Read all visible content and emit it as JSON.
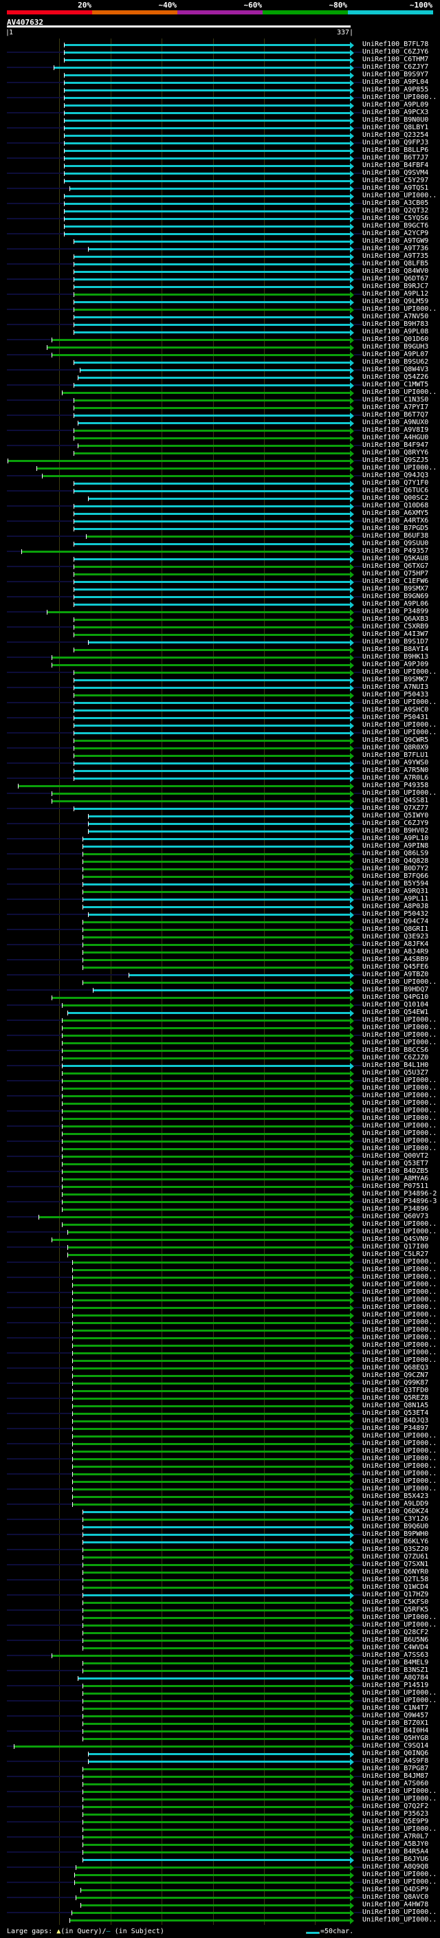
{
  "scale": {
    "labels": [
      "20%",
      "~40%",
      "~60%",
      "~80%",
      "~100%"
    ],
    "colors": [
      "#f00018",
      "#e06000",
      "#a020a0",
      "#00a000",
      "#10c8d0"
    ]
  },
  "query": {
    "title": "AV407632",
    "start": "1",
    "end": "337",
    "length": 337
  },
  "colors": {
    "c": "#10c8d0",
    "g": "#0aa00a"
  },
  "hits": [
    [
      "UniRef100_B7FL78",
      "c",
      57
    ],
    [
      "UniRef100_C6ZJY6",
      "c",
      57
    ],
    [
      "UniRef100_C6THM7",
      "c",
      57
    ],
    [
      "UniRef100_C6ZJY7",
      "c",
      47
    ],
    [
      "UniRef100_B9S9Y7",
      "c",
      57
    ],
    [
      "UniRef100_A9PL04",
      "c",
      57
    ],
    [
      "UniRef100_A9P855",
      "c",
      57
    ],
    [
      "UniRef100_UPI000..",
      "c",
      57
    ],
    [
      "UniRef100_A9PL09",
      "c",
      57
    ],
    [
      "UniRef100_A9PCX3",
      "c",
      57
    ],
    [
      "UniRef100_B9N0U0",
      "c",
      57
    ],
    [
      "UniRef100_Q8LBY1",
      "c",
      57
    ],
    [
      "UniRef100_Q23254",
      "c",
      57
    ],
    [
      "UniRef100_Q9FPJ3",
      "c",
      57
    ],
    [
      "UniRef100_B8LLP6",
      "c",
      57
    ],
    [
      "UniRef100_B6T7J7",
      "c",
      57
    ],
    [
      "UniRef100_B4FBF4",
      "c",
      57
    ],
    [
      "UniRef100_Q9SVM4",
      "c",
      57
    ],
    [
      "UniRef100_C5Y297",
      "c",
      57
    ],
    [
      "UniRef100_A9TQS1",
      "c",
      62
    ],
    [
      "UniRef100_UPI000..",
      "c",
      57
    ],
    [
      "UniRef100_A3CB05",
      "c",
      57
    ],
    [
      "UniRef100_Q2QT32",
      "c",
      57
    ],
    [
      "UniRef100_C5YQS6",
      "c",
      57
    ],
    [
      "UniRef100_B9GCT6",
      "c",
      57
    ],
    [
      "UniRef100_A2YCP9",
      "c",
      57
    ],
    [
      "UniRef100_A9TGW9",
      "c",
      66
    ],
    [
      "UniRef100_A9T736",
      "c",
      80
    ],
    [
      "UniRef100_A9T735",
      "c",
      66
    ],
    [
      "UniRef100_Q8LFB5",
      "c",
      66
    ],
    [
      "UniRef100_Q84WV0",
      "c",
      66
    ],
    [
      "UniRef100_Q6DT67",
      "c",
      66
    ],
    [
      "UniRef100_B9RJC7",
      "c",
      66
    ],
    [
      "UniRef100_A9PL12",
      "g",
      66
    ],
    [
      "UniRef100_Q9LM59",
      "c",
      66
    ],
    [
      "UniRef100_UPI000..",
      "g",
      66
    ],
    [
      "UniRef100_A7NV50",
      "c",
      66
    ],
    [
      "UniRef100_B9H783",
      "c",
      66
    ],
    [
      "UniRef100_A9PL08",
      "c",
      66
    ],
    [
      "UniRef100_Q01D60",
      "g",
      45
    ],
    [
      "UniRef100_B9GUH3",
      "g",
      40
    ],
    [
      "UniRef100_A9PL07",
      "g",
      45
    ],
    [
      "UniRef100_B9SU62",
      "c",
      66
    ],
    [
      "UniRef100_Q8W4V3",
      "c",
      72
    ],
    [
      "UniRef100_Q54Z26",
      "c",
      70
    ],
    [
      "UniRef100_C1MWT5",
      "c",
      66
    ],
    [
      "UniRef100_UPI000..",
      "g",
      55
    ],
    [
      "UniRef100_C1N3S0",
      "g",
      66
    ],
    [
      "UniRef100_A7PYI7",
      "g",
      66
    ],
    [
      "UniRef100_B6T7Q7",
      "c",
      66
    ],
    [
      "UniRef100_A9NUX0",
      "c",
      70
    ],
    [
      "UniRef100_A9V8I9",
      "g",
      66
    ],
    [
      "UniRef100_A4HGU0",
      "g",
      66
    ],
    [
      "UniRef100_B4F947",
      "g",
      70
    ],
    [
      "UniRef100_Q8RYY6",
      "g",
      66
    ],
    [
      "UniRef100_Q9SZJ5",
      "g",
      2
    ],
    [
      "UniRef100_UPI000..",
      "g",
      30
    ],
    [
      "UniRef100_Q94JQ3",
      "g",
      35
    ],
    [
      "UniRef100_Q7Y1F0",
      "c",
      66
    ],
    [
      "UniRef100_Q6TUC6",
      "c",
      66
    ],
    [
      "UniRef100_Q00SC2",
      "c",
      80
    ],
    [
      "UniRef100_Q10D68",
      "c",
      66
    ],
    [
      "UniRef100_A6XMY5",
      "c",
      66
    ],
    [
      "UniRef100_A4RTX6",
      "c",
      66
    ],
    [
      "UniRef100_B7PGD5",
      "c",
      66
    ],
    [
      "UniRef100_B6UF38",
      "g",
      78
    ],
    [
      "UniRef100_Q9SUU0",
      "c",
      66
    ],
    [
      "UniRef100_P49357",
      "g",
      15
    ],
    [
      "UniRef100_Q5KAU8",
      "c",
      66
    ],
    [
      "UniRef100_Q6TXG7",
      "g",
      66
    ],
    [
      "UniRef100_Q75HP7",
      "g",
      66
    ],
    [
      "UniRef100_C1EFW6",
      "c",
      66
    ],
    [
      "UniRef100_B9SMX7",
      "c",
      66
    ],
    [
      "UniRef100_B9GN69",
      "c",
      66
    ],
    [
      "UniRef100_A9PL06",
      "c",
      66
    ],
    [
      "UniRef100_P34899",
      "g",
      40
    ],
    [
      "UniRef100_Q6AXB3",
      "g",
      66
    ],
    [
      "UniRef100_C5XRB9",
      "g",
      66
    ],
    [
      "UniRef100_A4I3W7",
      "g",
      66
    ],
    [
      "UniRef100_B9S1D7",
      "c",
      80
    ],
    [
      "UniRef100_B8AYI4",
      "g",
      66
    ],
    [
      "UniRef100_B9HK13",
      "g",
      45
    ],
    [
      "UniRef100_A9PJ09",
      "g",
      45
    ],
    [
      "UniRef100_UPI000..",
      "g",
      66
    ],
    [
      "UniRef100_B9SMK7",
      "c",
      66
    ],
    [
      "UniRef100_A7NUI3",
      "c",
      66
    ],
    [
      "UniRef100_P50433",
      "g",
      66
    ],
    [
      "UniRef100_UPI000..",
      "c",
      66
    ],
    [
      "UniRef100_A9SHC0",
      "c",
      66
    ],
    [
      "UniRef100_P50431",
      "c",
      66
    ],
    [
      "UniRef100_UPI000..",
      "c",
      66
    ],
    [
      "UniRef100_UPI000..",
      "c",
      66
    ],
    [
      "UniRef100_Q9CWR5",
      "g",
      66
    ],
    [
      "UniRef100_Q8R0X9",
      "g",
      66
    ],
    [
      "UniRef100_B7FLU1",
      "g",
      66
    ],
    [
      "UniRef100_A9YWS0",
      "c",
      66
    ],
    [
      "UniRef100_A7R5N0",
      "c",
      66
    ],
    [
      "UniRef100_A7R0L6",
      "c",
      66
    ],
    [
      "UniRef100_P49358",
      "g",
      12
    ],
    [
      "UniRef100_UPI000..",
      "g",
      45
    ],
    [
      "UniRef100_Q4SS81",
      "g",
      45
    ],
    [
      "UniRef100_Q7XZ77",
      "c",
      66
    ],
    [
      "UniRef100_Q5IWY0",
      "c",
      80
    ],
    [
      "UniRef100_C6ZJY9",
      "c",
      80
    ],
    [
      "UniRef100_B9HV02",
      "c",
      80
    ],
    [
      "UniRef100_A9PL10",
      "c",
      75
    ],
    [
      "UniRef100_A9PIN8",
      "c",
      75
    ],
    [
      "UniRef100_Q86LS9",
      "g",
      75
    ],
    [
      "UniRef100_Q4Q828",
      "g",
      75
    ],
    [
      "UniRef100_B0D7Y2",
      "g",
      75
    ],
    [
      "UniRef100_B7FQ66",
      "g",
      75
    ],
    [
      "UniRef100_B5Y594",
      "c",
      75
    ],
    [
      "UniRef100_A9RQ31",
      "g",
      75
    ],
    [
      "UniRef100_A9PL11",
      "c",
      75
    ],
    [
      "UniRef100_A8P0J8",
      "c",
      75
    ],
    [
      "UniRef100_P50432",
      "c",
      80
    ],
    [
      "UniRef100_Q94C74",
      "g",
      75
    ],
    [
      "UniRef100_Q8GRI1",
      "g",
      75
    ],
    [
      "UniRef100_Q3E923",
      "g",
      75
    ],
    [
      "UniRef100_A8JFK4",
      "g",
      75
    ],
    [
      "UniRef100_A8J4R9",
      "g",
      75
    ],
    [
      "UniRef100_A4SBB9",
      "g",
      75
    ],
    [
      "UniRef100_Q45FE6",
      "g",
      75
    ],
    [
      "UniRef100_A9TBZ0",
      "c",
      120
    ],
    [
      "UniRef100_UPI000..",
      "g",
      75
    ],
    [
      "UniRef100_B9HDQ7",
      "c",
      85
    ],
    [
      "UniRef100_Q4PG10",
      "g",
      45
    ],
    [
      "UniRef100_Q10104",
      "g",
      55
    ],
    [
      "UniRef100_Q54EW1",
      "c",
      60
    ],
    [
      "UniRef100_UPI000..",
      "g",
      55
    ],
    [
      "UniRef100_UPI000..",
      "g",
      55
    ],
    [
      "UniRef100_UPI000..",
      "g",
      55
    ],
    [
      "UniRef100_UPI000..",
      "g",
      55
    ],
    [
      "UniRef100_B8CCS6",
      "g",
      55
    ],
    [
      "UniRef100_C6ZJZ0",
      "g",
      55
    ],
    [
      "UniRef100_B4L1H0",
      "c",
      55
    ],
    [
      "UniRef100_Q5U3Z7",
      "g",
      55
    ],
    [
      "UniRef100_UPI000..",
      "g",
      55
    ],
    [
      "UniRef100_UPI000..",
      "g",
      55
    ],
    [
      "UniRef100_UPI000..",
      "g",
      55
    ],
    [
      "UniRef100_UPI000..",
      "g",
      55
    ],
    [
      "UniRef100_UPI000..",
      "g",
      55
    ],
    [
      "UniRef100_UPI000..",
      "g",
      55
    ],
    [
      "UniRef100_UPI000..",
      "g",
      55
    ],
    [
      "UniRef100_UPI000..",
      "g",
      55
    ],
    [
      "UniRef100_UPI000..",
      "g",
      55
    ],
    [
      "UniRef100_UPI000..",
      "g",
      55
    ],
    [
      "UniRef100_Q00VT2",
      "g",
      55
    ],
    [
      "UniRef100_Q53ET7",
      "g",
      55
    ],
    [
      "UniRef100_B4DZB5",
      "g",
      55
    ],
    [
      "UniRef100_A8MYA6",
      "g",
      55
    ],
    [
      "UniRef100_P07511",
      "g",
      55
    ],
    [
      "UniRef100_P34896-2",
      "g",
      55
    ],
    [
      "UniRef100_P34896-3",
      "g",
      55
    ],
    [
      "UniRef100_P34896",
      "g",
      55
    ],
    [
      "UniRef100_Q60V73",
      "g",
      32
    ],
    [
      "UniRef100_UPI000..",
      "g",
      55
    ],
    [
      "UniRef100_UPI000..",
      "g",
      60
    ],
    [
      "UniRef100_Q4SVN9",
      "g",
      45
    ],
    [
      "UniRef100_Q17I00",
      "g",
      60
    ],
    [
      "UniRef100_C5LR27",
      "g",
      60
    ],
    [
      "UniRef100_UPI000..",
      "g",
      65
    ],
    [
      "UniRef100_UPI000..",
      "g",
      65
    ],
    [
      "UniRef100_UPI000..",
      "g",
      65
    ],
    [
      "UniRef100_UPI000..",
      "g",
      65
    ],
    [
      "UniRef100_UPI000..",
      "g",
      65
    ],
    [
      "UniRef100_UPI000..",
      "g",
      65
    ],
    [
      "UniRef100_UPI000..",
      "g",
      65
    ],
    [
      "UniRef100_UPI000..",
      "g",
      65
    ],
    [
      "UniRef100_UPI000..",
      "g",
      65
    ],
    [
      "UniRef100_UPI000..",
      "g",
      65
    ],
    [
      "UniRef100_UPI000..",
      "g",
      65
    ],
    [
      "UniRef100_UPI000..",
      "g",
      65
    ],
    [
      "UniRef100_UPI000..",
      "g",
      65
    ],
    [
      "UniRef100_UPI000..",
      "g",
      65
    ],
    [
      "UniRef100_Q68EQ3",
      "g",
      65
    ],
    [
      "UniRef100_Q9CZN7",
      "g",
      65
    ],
    [
      "UniRef100_Q99K87",
      "g",
      65
    ],
    [
      "UniRef100_Q3TFD0",
      "g",
      65
    ],
    [
      "UniRef100_Q5REZ8",
      "g",
      65
    ],
    [
      "UniRef100_Q8N1A5",
      "g",
      65
    ],
    [
      "UniRef100_Q53ET4",
      "g",
      65
    ],
    [
      "UniRef100_B4DJQ3",
      "g",
      65
    ],
    [
      "UniRef100_P34897",
      "g",
      65
    ],
    [
      "UniRef100_UPI000..",
      "g",
      65
    ],
    [
      "UniRef100_UPI000..",
      "g",
      65
    ],
    [
      "UniRef100_UPI000..",
      "g",
      65
    ],
    [
      "UniRef100_UPI000..",
      "g",
      65
    ],
    [
      "UniRef100_UPI000..",
      "g",
      65
    ],
    [
      "UniRef100_UPI000..",
      "g",
      65
    ],
    [
      "UniRef100_UPI000..",
      "g",
      65
    ],
    [
      "UniRef100_UPI000..",
      "g",
      65
    ],
    [
      "UniRef100_B5X423",
      "g",
      65
    ],
    [
      "UniRef100_A9LDD9",
      "g",
      65
    ],
    [
      "UniRef100_Q6DKZ4",
      "c",
      75
    ],
    [
      "UniRef100_C3Y126",
      "g",
      75
    ],
    [
      "UniRef100_B9Q6U0",
      "c",
      75
    ],
    [
      "UniRef100_B9PWH0",
      "c",
      75
    ],
    [
      "UniRef100_B6KLY6",
      "c",
      75
    ],
    [
      "UniRef100_Q3SZ20",
      "g",
      75
    ],
    [
      "UniRef100_Q7ZU61",
      "g",
      75
    ],
    [
      "UniRef100_Q7SXN1",
      "g",
      75
    ],
    [
      "UniRef100_Q6NYR0",
      "g",
      75
    ],
    [
      "UniRef100_Q2TL58",
      "g",
      75
    ],
    [
      "UniRef100_Q1WCD4",
      "g",
      75
    ],
    [
      "UniRef100_Q17HZ9",
      "c",
      75
    ],
    [
      "UniRef100_C5KFS0",
      "g",
      75
    ],
    [
      "UniRef100_Q5RFK5",
      "g",
      75
    ],
    [
      "UniRef100_UPI000..",
      "g",
      75
    ],
    [
      "UniRef100_UPI000..",
      "g",
      75
    ],
    [
      "UniRef100_Q28CF2",
      "g",
      75
    ],
    [
      "UniRef100_B6U5N6",
      "g",
      75
    ],
    [
      "UniRef100_C4WVD4",
      "g",
      75
    ],
    [
      "UniRef100_A7SS63",
      "g",
      45
    ],
    [
      "UniRef100_B4MEL9",
      "g",
      75
    ],
    [
      "UniRef100_B3NSZ1",
      "g",
      75
    ],
    [
      "UniRef100_A8Q784",
      "c",
      70
    ],
    [
      "UniRef100_P14519",
      "g",
      75
    ],
    [
      "UniRef100_UPI000..",
      "g",
      75
    ],
    [
      "UniRef100_UPI000..",
      "g",
      75
    ],
    [
      "UniRef100_C1N4T7",
      "g",
      75
    ],
    [
      "UniRef100_Q9W457",
      "g",
      75
    ],
    [
      "UniRef100_B7Z0X1",
      "g",
      75
    ],
    [
      "UniRef100_B4I0H4",
      "g",
      75
    ],
    [
      "UniRef100_Q5HYG8",
      "g",
      75
    ],
    [
      "UniRef100_C9SQ14",
      "g",
      8
    ],
    [
      "UniRef100_Q0INQ6",
      "c",
      80
    ],
    [
      "UniRef100_A4S9F8",
      "c",
      80
    ],
    [
      "UniRef100_B7PG87",
      "g",
      75
    ],
    [
      "UniRef100_B4JM87",
      "g",
      75
    ],
    [
      "UniRef100_A7S060",
      "g",
      75
    ],
    [
      "UniRef100_UPI000..",
      "g",
      75
    ],
    [
      "UniRef100_UPI000..",
      "g",
      75
    ],
    [
      "UniRef100_Q7Q2F2",
      "g",
      75
    ],
    [
      "UniRef100_P35623",
      "g",
      75
    ],
    [
      "UniRef100_Q5E9P9",
      "g",
      75
    ],
    [
      "UniRef100_UPI000..",
      "g",
      75
    ],
    [
      "UniRef100_A7R0L7",
      "g",
      75
    ],
    [
      "UniRef100_A5BJY0",
      "g",
      75
    ],
    [
      "UniRef100_B4R5A4",
      "g",
      75
    ],
    [
      "UniRef100_B6JYU6",
      "c",
      75
    ],
    [
      "UniRef100_A8Q9Q8",
      "g",
      68
    ],
    [
      "UniRef100_UPI000..",
      "g",
      67
    ],
    [
      "UniRef100_UPI000..",
      "g",
      67
    ],
    [
      "UniRef100_Q4DSP9",
      "g",
      73
    ],
    [
      "UniRef100_Q8AVC0",
      "g",
      68
    ],
    [
      "UniRef100_A4HW78",
      "g",
      73
    ],
    [
      "UniRef100_UPI000..",
      "g",
      64
    ],
    [
      "UniRef100_UPI000..",
      "g",
      62
    ]
  ],
  "footer": {
    "gaps_label": "Large gaps:",
    "query_gap": "(in Query)/",
    "subject_gap": "(in Subject)",
    "scale_label": "=50char."
  }
}
